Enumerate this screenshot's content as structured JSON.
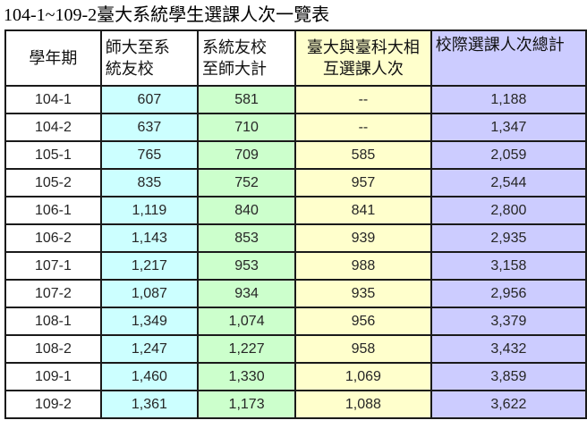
{
  "page_title": "104-1~109-2臺大系統學生選課人次一覽表",
  "colors": {
    "background": "#ffffff",
    "border": "#1a1a1a",
    "text": "#262626",
    "header_text": "#111111",
    "col_term_bg": "#ffffff",
    "col_cyan": "#ccffff",
    "col_green": "#ccffcc",
    "col_yellow": "#ffffcc",
    "col_lavender": "#ccccff"
  },
  "chart_data": {
    "type": "table",
    "title": "104-1~109-2臺大系統學生選課人次一覽表",
    "columns": [
      {
        "id": "term",
        "label": "學年期",
        "lines": [
          "學年期"
        ],
        "header_bg": "#ffffff",
        "cell_bg": "#ffffff"
      },
      {
        "id": "ntnu-to-system",
        "label": "師大至系統友校",
        "lines": [
          "師大至系",
          "統友校"
        ],
        "header_bg": "#ffffff",
        "cell_bg": "#ccffff"
      },
      {
        "id": "system-to-ntnu",
        "label": "系統友校至師大計",
        "lines": [
          "系統友校",
          "至師大計"
        ],
        "header_bg": "#ffffff",
        "cell_bg": "#ccffcc"
      },
      {
        "id": "ntu-ntust-mutual",
        "label": "臺大與臺科大相互選課人次",
        "lines": [
          "臺大與臺科大相",
          "互選課人次"
        ],
        "header_bg": "#ffffcc",
        "cell_bg": "#ffffcc"
      },
      {
        "id": "total",
        "label": "校際選課人次總計",
        "lines": [
          "校際選課人次總計"
        ],
        "header_bg": "#ccccff",
        "cell_bg": "#ccccff"
      }
    ],
    "rows": [
      {
        "values": [
          "104-1",
          "607",
          "581",
          "--",
          "1,188"
        ]
      },
      {
        "values": [
          "104-2",
          "637",
          "710",
          "--",
          "1,347"
        ]
      },
      {
        "values": [
          "105-1",
          "765",
          "709",
          "585",
          "2,059"
        ]
      },
      {
        "values": [
          "105-2",
          "835",
          "752",
          "957",
          "2,544"
        ]
      },
      {
        "values": [
          "106-1",
          "1,119",
          "840",
          "841",
          "2,800"
        ]
      },
      {
        "values": [
          "106-2",
          "1,143",
          "853",
          "939",
          "2,935"
        ]
      },
      {
        "values": [
          "107-1",
          "1,217",
          "953",
          "988",
          "3,158"
        ]
      },
      {
        "values": [
          "107-2",
          "1,087",
          "934",
          "935",
          "2,956"
        ]
      },
      {
        "values": [
          "108-1",
          "1,349",
          "1,074",
          "956",
          "3,379"
        ]
      },
      {
        "values": [
          "108-2",
          "1,247",
          "1,227",
          "958",
          "3,432"
        ]
      },
      {
        "values": [
          "109-1",
          "1,460",
          "1,330",
          "1,069",
          "3,859"
        ]
      },
      {
        "values": [
          "109-2",
          "1,361",
          "1,173",
          "1,088",
          "3,622"
        ]
      }
    ]
  }
}
